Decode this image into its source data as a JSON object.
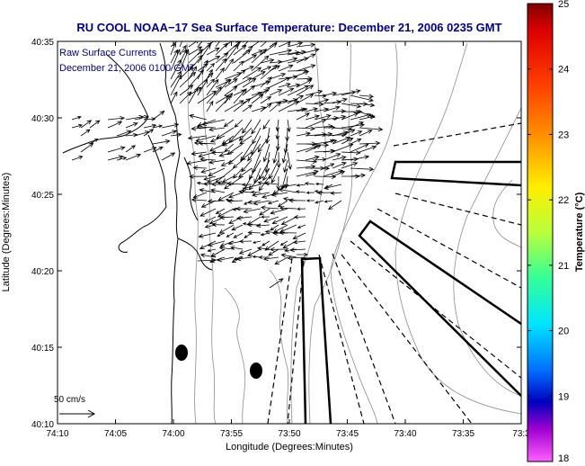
{
  "chart_data": {
    "type": "quiver",
    "title": "RU COOL  NOAA−17  Sea Surface Temperature:  December 21, 2006 0235 GMT",
    "xlabel": "Longitude (Degrees:Minutes)",
    "ylabel": "Latitude (Degrees:Minutes)",
    "x_ticks": [
      "74:10",
      "74:05",
      "74:00",
      "73:55",
      "73:50",
      "73:45",
      "73:40",
      "73:35",
      "73:3"
    ],
    "y_ticks": [
      "40:10",
      "40:15",
      "40:20",
      "40:25",
      "40:30",
      "40:35"
    ],
    "xlim": [
      "74:10",
      "73:30"
    ],
    "ylim": [
      "40:10",
      "40:35"
    ],
    "legend_lines": [
      "Raw Surface Currents",
      "December 21, 2006 0100 GMT"
    ],
    "scale_label": "50 cm/s",
    "colorbar": {
      "label": "Temperature (°C)",
      "min": 18,
      "max": 25,
      "ticks": [
        "25",
        "24",
        "23",
        "22",
        "21",
        "20",
        "19",
        "18"
      ]
    },
    "current_vectors_sample": [
      {
        "lon": -74.05,
        "lat": 40.53,
        "u": 20,
        "v": 5
      },
      {
        "lon": -74.0,
        "lat": 40.52,
        "u": 25,
        "v": 10
      },
      {
        "lon": -73.95,
        "lat": 40.5,
        "u": 30,
        "v": 15
      },
      {
        "lon": -73.9,
        "lat": 40.48,
        "u": 25,
        "v": 5
      },
      {
        "lon": -73.85,
        "lat": 40.45,
        "u": 15,
        "v": -5
      },
      {
        "lon": -73.92,
        "lat": 40.43,
        "u": -20,
        "v": 8
      },
      {
        "lon": -73.95,
        "lat": 40.38,
        "u": -15,
        "v": 5
      },
      {
        "lon": -73.88,
        "lat": 40.4,
        "u": -20,
        "v": 10
      }
    ]
  },
  "colors": {
    "title": "#00008b",
    "annotation": "#00008b",
    "land": "#ffffff",
    "vectors": "#000000",
    "contours": "#888888"
  }
}
